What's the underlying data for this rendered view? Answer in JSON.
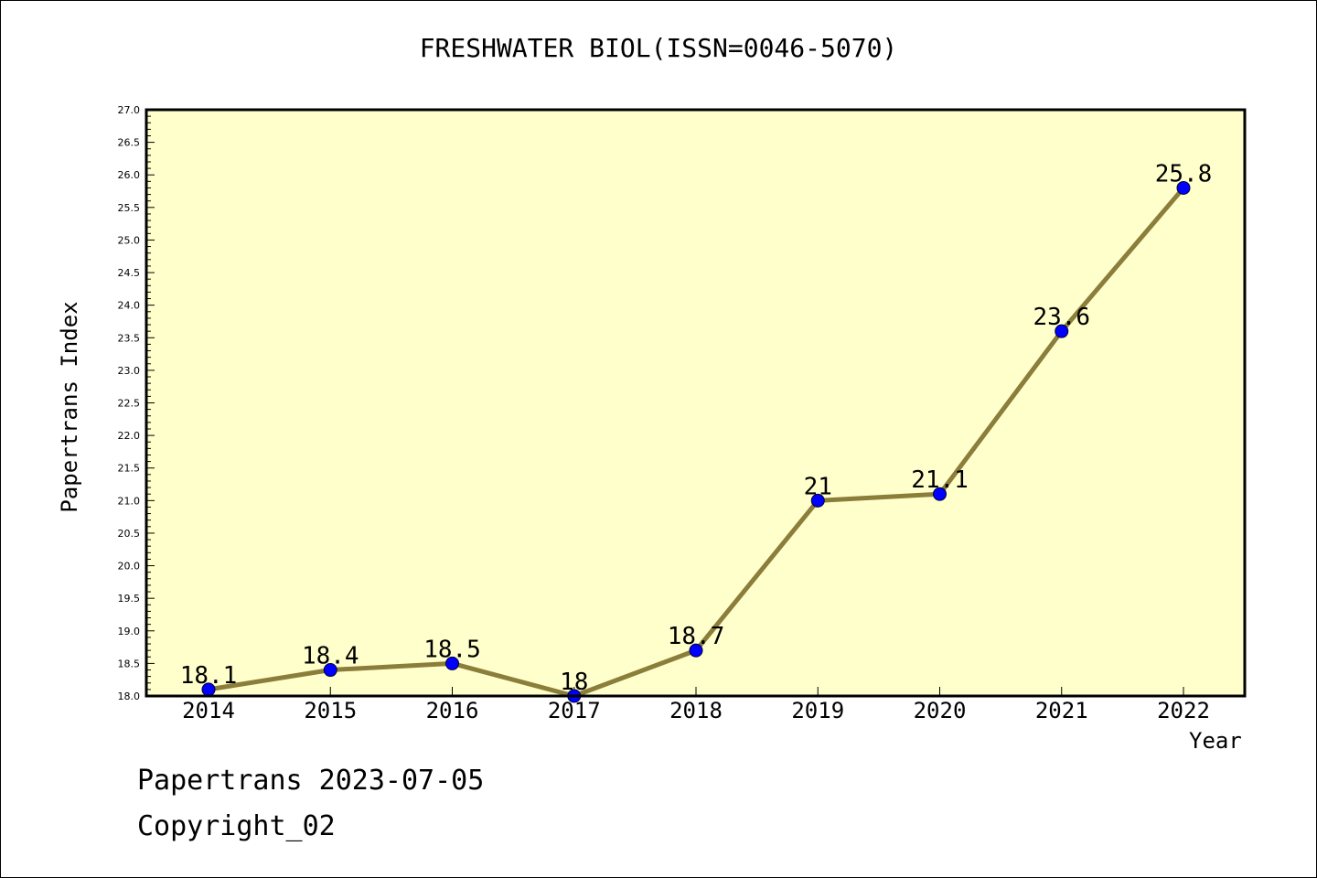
{
  "chart_data": {
    "type": "line",
    "title": "FRESHWATER BIOL(ISSN=0046-5070)",
    "xlabel": "Year",
    "ylabel": "Papertrans Index",
    "categories": [
      "2014",
      "2015",
      "2016",
      "2017",
      "2018",
      "2019",
      "2020",
      "2021",
      "2022"
    ],
    "series": [
      {
        "values": [
          18.1,
          18.4,
          18.5,
          18.0,
          18.7,
          21.0,
          21.1,
          23.6,
          25.8
        ],
        "data_labels": [
          "18.1",
          "18.4",
          "18.5",
          "18",
          "18.7",
          "21",
          "21.1",
          "23.6",
          "25.8"
        ]
      }
    ],
    "ylim": [
      18.0,
      27.0
    ],
    "ytick_step": 0.5,
    "grid": false,
    "colors": {
      "plot_background": "#ffffcc",
      "line": "#8b7d3a",
      "marker": "#0000ff"
    }
  },
  "footer": {
    "line1": "Papertrans 2023-07-05",
    "line2": "Copyright_02"
  }
}
